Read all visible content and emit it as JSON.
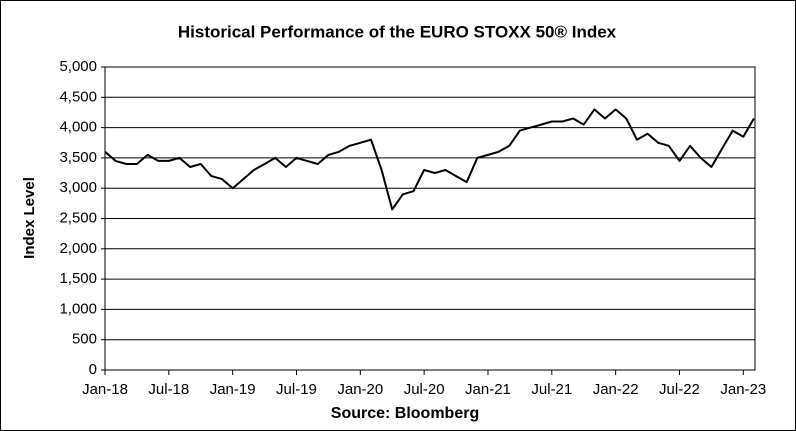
{
  "chart_data": {
    "type": "line",
    "title": "Historical Performance of the EURO STOXX 50® Index",
    "y_label": "Index Level",
    "source": "Source: Bloomberg",
    "categories": [
      "Jan-18",
      null,
      null,
      null,
      null,
      null,
      "Jul-18",
      null,
      null,
      null,
      null,
      null,
      "Jan-19",
      null,
      null,
      null,
      null,
      null,
      "Jul-19",
      null,
      null,
      null,
      null,
      null,
      "Jan-20",
      null,
      null,
      null,
      null,
      null,
      "Jul-20",
      null,
      null,
      null,
      null,
      null,
      "Jan-21",
      null,
      null,
      null,
      null,
      null,
      "Jul-21",
      null,
      null,
      null,
      null,
      null,
      "Jan-22",
      null,
      null,
      null,
      null,
      null,
      "Jul-22",
      null,
      null,
      null,
      null,
      null,
      "Jan-23",
      null
    ],
    "values": [
      3600,
      3450,
      3400,
      3400,
      3550,
      3450,
      3450,
      3500,
      3350,
      3400,
      3200,
      3150,
      3000,
      3150,
      3300,
      3400,
      3500,
      3350,
      3500,
      3450,
      3400,
      3550,
      3600,
      3700,
      3750,
      3800,
      3300,
      2650,
      2900,
      2950,
      3300,
      3250,
      3300,
      3200,
      3100,
      3500,
      3550,
      3600,
      3700,
      3950,
      4000,
      4050,
      4100,
      4100,
      4150,
      4050,
      4300,
      4150,
      4300,
      4150,
      3800,
      3900,
      3750,
      3700,
      3450,
      3700,
      3500,
      3350,
      3650,
      3950,
      3850,
      4150
    ],
    "color": "#000000",
    "ylim": [
      0,
      5000
    ],
    "yticks": [
      0,
      500,
      {
        "value": 1000,
        "label": "1,000"
      },
      {
        "value": 1500,
        "label": "1,500"
      },
      {
        "value": 2000,
        "label": "2,000"
      },
      {
        "value": 2500,
        "label": "2,500"
      },
      {
        "value": 3000,
        "label": "3,000"
      },
      {
        "value": 3500,
        "label": "3,500"
      },
      {
        "value": 4000,
        "label": "4,000"
      },
      {
        "value": 4500,
        "label": "4,500"
      },
      {
        "value": 5000,
        "label": "5,000"
      }
    ],
    "grid": true
  }
}
